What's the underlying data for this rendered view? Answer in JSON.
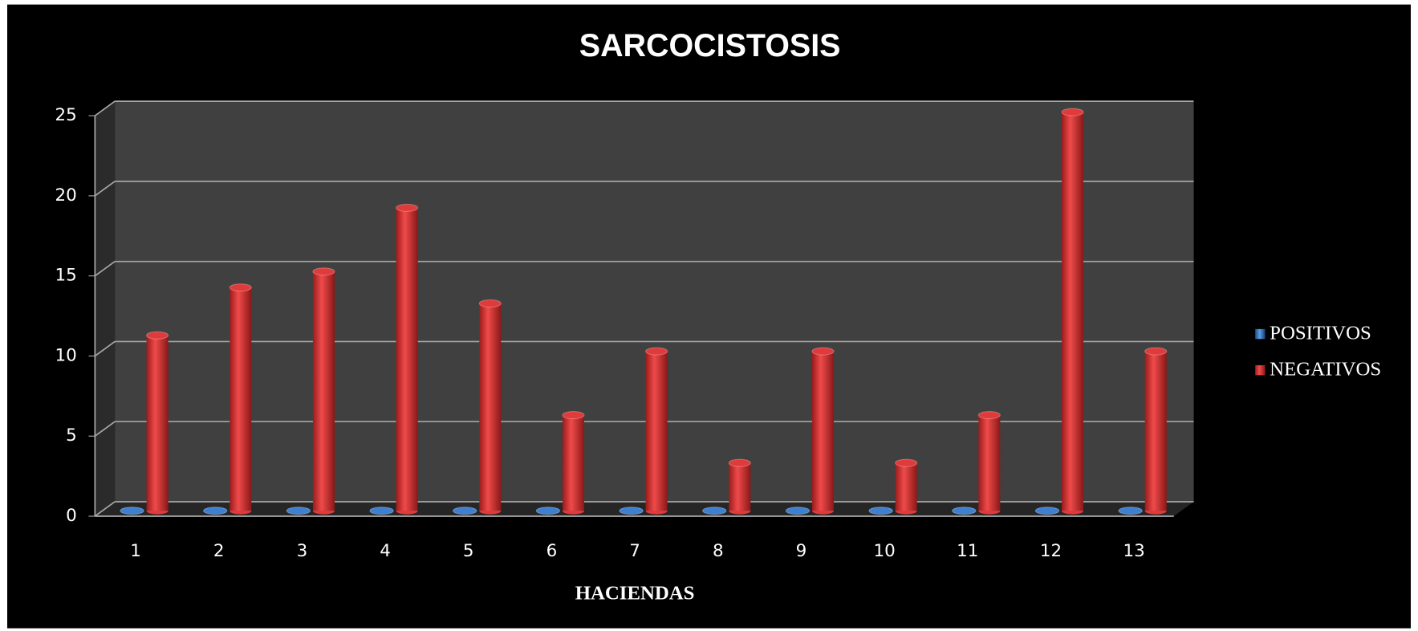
{
  "chart_data": {
    "type": "bar",
    "title": "SARCOCISTOSIS",
    "x_label": "HACIENDAS",
    "categories": [
      "1",
      "2",
      "3",
      "4",
      "5",
      "6",
      "7",
      "8",
      "9",
      "10",
      "11",
      "12",
      "13"
    ],
    "series": [
      {
        "name": "POSITIVOS",
        "color": "#3f7fd0",
        "values": [
          0,
          0,
          0,
          0,
          0,
          0,
          0,
          0,
          0,
          0,
          0,
          0,
          0
        ]
      },
      {
        "name": "NEGATIVOS",
        "color": "#e03a3a",
        "values": [
          11,
          14,
          15,
          19,
          13,
          6,
          10,
          3,
          10,
          3,
          6,
          25,
          10
        ]
      }
    ],
    "ylim": [
      0,
      25
    ],
    "yticks": [
      0,
      5,
      10,
      15,
      20,
      25
    ],
    "grid": true,
    "legend": "right"
  }
}
